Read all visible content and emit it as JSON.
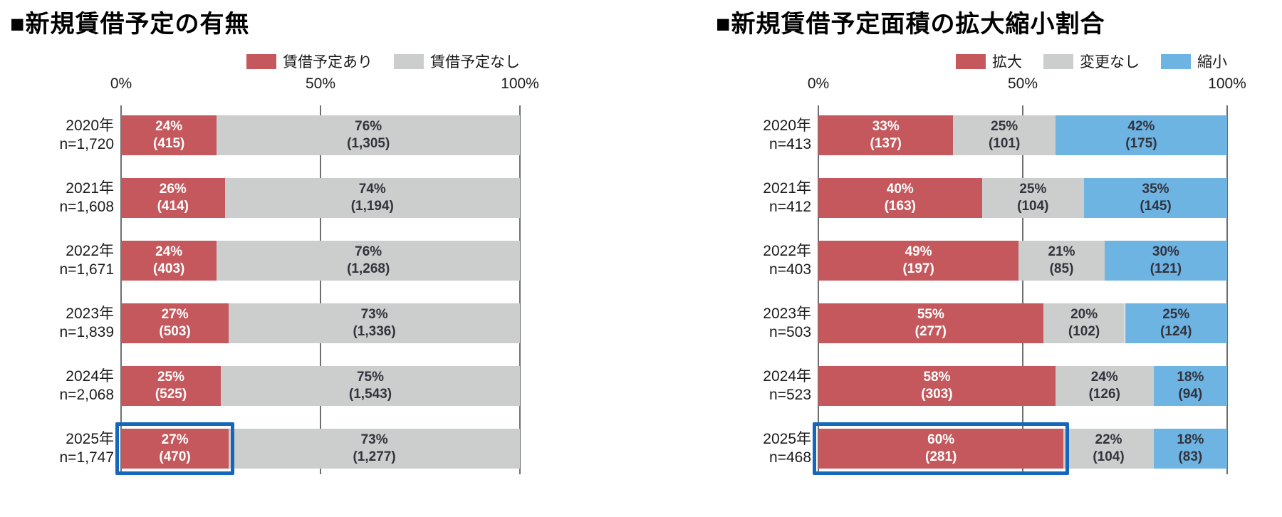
{
  "chart_data": [
    {
      "type": "bar",
      "stacked": true,
      "orientation": "horizontal",
      "title": "■新規賃借予定の有無",
      "axis_ticks": [
        "0%",
        "50%",
        "100%"
      ],
      "xlim": [
        0,
        100
      ],
      "grid": true,
      "legend_position": "top-right",
      "categories": [
        {
          "year": "2020年",
          "n": "n=1,720"
        },
        {
          "year": "2021年",
          "n": "n=1,608"
        },
        {
          "year": "2022年",
          "n": "n=1,671"
        },
        {
          "year": "2023年",
          "n": "n=1,839"
        },
        {
          "year": "2024年",
          "n": "n=2,068"
        },
        {
          "year": "2025年",
          "n": "n=1,747"
        }
      ],
      "series": [
        {
          "name": "賃借予定あり",
          "color": "#c4585c",
          "text_color": "#ffffff",
          "values": [
            24,
            26,
            24,
            27,
            25,
            27
          ],
          "counts": [
            "(415)",
            "(414)",
            "(403)",
            "(503)",
            "(525)",
            "(470)"
          ]
        },
        {
          "name": "賃借予定なし",
          "color": "#cbcecd",
          "text_color": "#33333d",
          "values": [
            76,
            74,
            76,
            73,
            75,
            73
          ],
          "counts": [
            "(1,305)",
            "(1,194)",
            "(1,268)",
            "(1,336)",
            "(1,543)",
            "(1,277)"
          ]
        }
      ],
      "highlight": {
        "row": 5,
        "segment": 0,
        "color": "#1467bd"
      }
    },
    {
      "type": "bar",
      "stacked": true,
      "orientation": "horizontal",
      "title": "■新規賃借予定面積の拡大縮小割合",
      "axis_ticks": [
        "0%",
        "50%",
        "100%"
      ],
      "xlim": [
        0,
        100
      ],
      "grid": true,
      "legend_position": "top-right",
      "categories": [
        {
          "year": "2020年",
          "n": "n=413"
        },
        {
          "year": "2021年",
          "n": "n=412"
        },
        {
          "year": "2022年",
          "n": "n=403"
        },
        {
          "year": "2023年",
          "n": "n=503"
        },
        {
          "year": "2024年",
          "n": "n=523"
        },
        {
          "year": "2025年",
          "n": "n=468"
        }
      ],
      "series": [
        {
          "name": "拡大",
          "color": "#c4585c",
          "text_color": "#ffffff",
          "values": [
            33,
            40,
            49,
            55,
            58,
            60
          ],
          "counts": [
            "(137)",
            "(163)",
            "(197)",
            "(277)",
            "(303)",
            "(281)"
          ]
        },
        {
          "name": "変更なし",
          "color": "#cbcecd",
          "text_color": "#33333d",
          "values": [
            25,
            25,
            21,
            20,
            24,
            22
          ],
          "counts": [
            "(101)",
            "(104)",
            "(85)",
            "(102)",
            "(126)",
            "(104)"
          ]
        },
        {
          "name": "縮小",
          "color": "#6db4e3",
          "text_color": "#33333d",
          "values": [
            42,
            35,
            30,
            25,
            18,
            18
          ],
          "counts": [
            "(175)",
            "(145)",
            "(121)",
            "(124)",
            "(94)",
            "(83)"
          ]
        }
      ],
      "highlight": {
        "row": 5,
        "segment": 0,
        "color": "#1467bd"
      }
    }
  ]
}
